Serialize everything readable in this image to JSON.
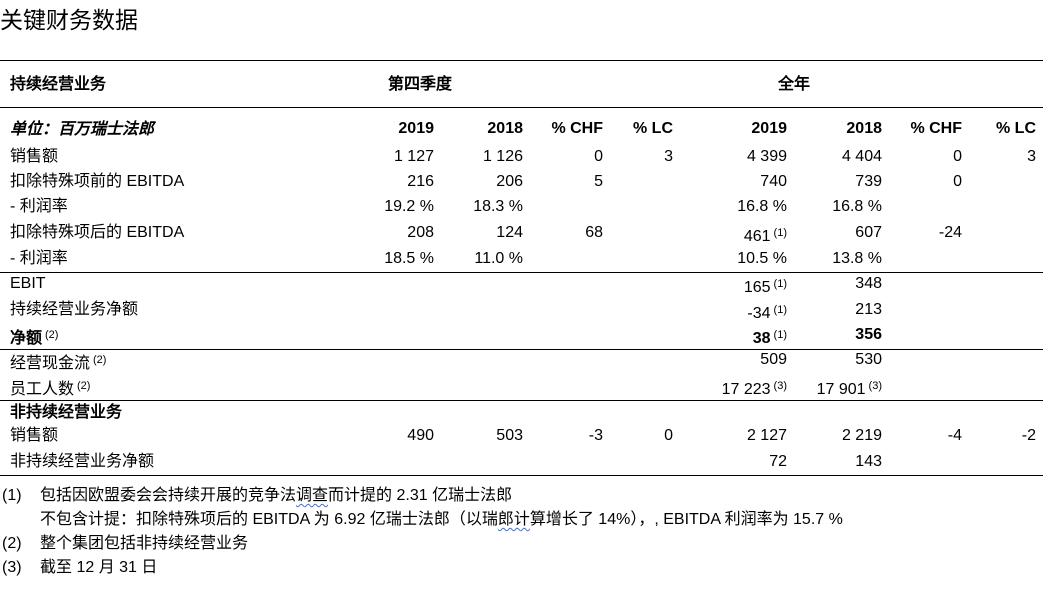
{
  "title": "关键财务数据",
  "header": {
    "section_label": "持续经营业务",
    "q4_label": "第四季度",
    "fy_label": "全年",
    "unit_label": "单位：百万瑞士法郎",
    "cols": [
      "2019",
      "2018",
      "% CHF",
      "% LC",
      "2019",
      "2018",
      "% CHF",
      "% LC"
    ]
  },
  "rows": [
    {
      "label": "销售额",
      "bold": false,
      "cells": [
        "1 127",
        "1 126",
        "0",
        "3",
        "4 399",
        "4 404",
        "0",
        "3"
      ]
    },
    {
      "label": "扣除特殊项前的 EBITDA",
      "bold": false,
      "cells": [
        "216",
        "206",
        "5",
        "",
        "740",
        "739",
        "0",
        ""
      ]
    },
    {
      "label": "- 利润率",
      "bold": false,
      "cells": [
        "19.2 %",
        "18.3 %",
        "",
        "",
        "16.8 %",
        "16.8 %",
        "",
        ""
      ]
    },
    {
      "label": "扣除特殊项后的 EBITDA",
      "bold": false,
      "cells": [
        "208",
        "124",
        "68",
        "",
        "461",
        "607",
        "-24",
        ""
      ],
      "notes": {
        "4": "(1)"
      }
    },
    {
      "label": "- 利润率",
      "bold": false,
      "cells": [
        "18.5 %",
        "11.0 %",
        "",
        "",
        "10.5 %",
        "13.8 %",
        "",
        ""
      ]
    },
    {
      "label": "EBIT",
      "bold": false,
      "cells": [
        "",
        "",
        "",
        "",
        "165",
        "348",
        "",
        ""
      ],
      "notes": {
        "4": "(1)"
      }
    },
    {
      "label": "持续经营业务净额",
      "bold": false,
      "cells": [
        "",
        "",
        "",
        "",
        "-34",
        "213",
        "",
        ""
      ],
      "notes": {
        "4": "(1)"
      }
    },
    {
      "label": "净额",
      "label_note": "(2)",
      "bold": true,
      "cells": [
        "",
        "",
        "",
        "",
        "38",
        "356",
        "",
        ""
      ],
      "notes": {
        "4": "(1)"
      }
    },
    {
      "label": "经营现金流",
      "label_note": "(2)",
      "bold": false,
      "cells": [
        "",
        "",
        "",
        "",
        "509",
        "530",
        "",
        ""
      ]
    },
    {
      "label": "员工人数",
      "label_note": "(2)",
      "bold": false,
      "cells": [
        "",
        "",
        "",
        "",
        "17 223",
        "17 901",
        "",
        ""
      ],
      "notes": {
        "4": "(3)",
        "5": "(3)"
      }
    },
    {
      "label": "非持续经营业务",
      "bold": true,
      "cells": [
        "",
        "",
        "",
        "",
        "",
        "",
        "",
        ""
      ]
    },
    {
      "label": "销售额",
      "bold": false,
      "cells": [
        "490",
        "503",
        "-3",
        "0",
        "2 127",
        "2 219",
        "-4",
        "-2"
      ]
    },
    {
      "label": "非持续经营业务净额",
      "bold": false,
      "cells": [
        "",
        "",
        "",
        "",
        "72",
        "143",
        "",
        ""
      ]
    }
  ],
  "footnotes": [
    {
      "num": "(1)",
      "text_a": "包括因欧盟委会会持续开展的竞争法",
      "text_wavy": "调查",
      "text_b": "而计提的 2.31 亿瑞士法郎"
    },
    {
      "num": "",
      "text_a": "不包含计提：扣除特殊项后的 EBITDA 为 6.92 亿瑞士法郎（以瑞",
      "text_wavy": "郎计",
      "text_b": "算增长了 14%），, EBITDA 利润率为 15.7 %"
    },
    {
      "num": "(2)",
      "text_a": "整个集团包括非持续经营业务",
      "text_wavy": "",
      "text_b": ""
    },
    {
      "num": "(3)",
      "text_a": "截至 12 月 31 日",
      "text_wavy": "",
      "text_b": ""
    }
  ]
}
